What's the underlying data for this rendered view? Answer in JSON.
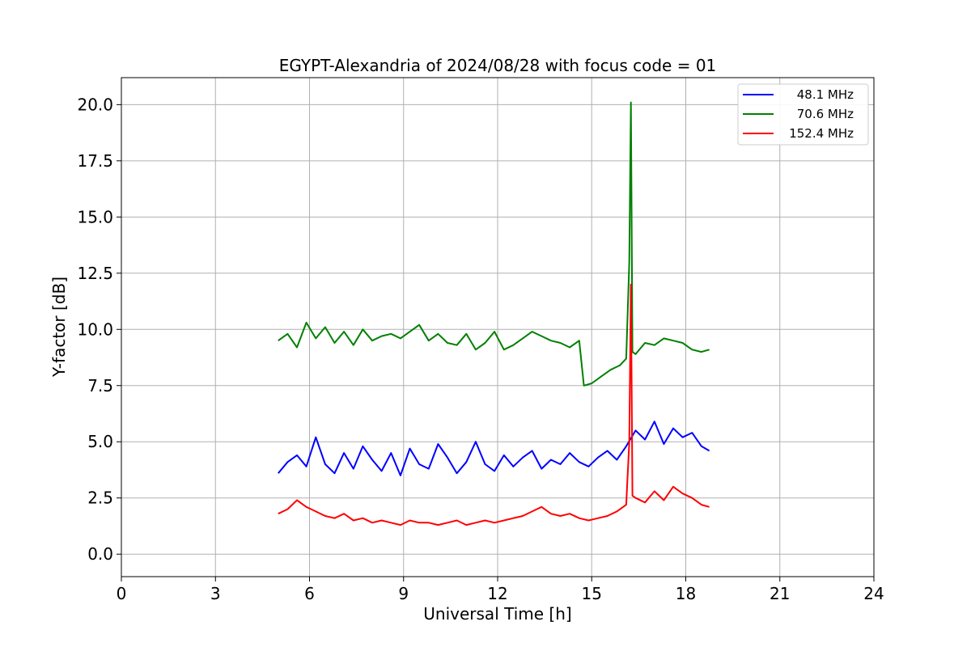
{
  "chart_data": {
    "type": "line",
    "title": "EGYPT-Alexandria of 2024/08/28 with focus code = 01",
    "xlabel": "Universal Time [h]",
    "ylabel": "Y-factor [dB]",
    "xlim": [
      0,
      24
    ],
    "ylim": [
      -1.0,
      21.2
    ],
    "xticks": [
      0,
      3,
      6,
      9,
      12,
      15,
      18,
      21,
      24
    ],
    "xtick_labels": [
      "0",
      "3",
      "6",
      "9",
      "12",
      "15",
      "18",
      "21",
      "24"
    ],
    "yticks": [
      0.0,
      2.5,
      5.0,
      7.5,
      10.0,
      12.5,
      15.0,
      17.5,
      20.0
    ],
    "ytick_labels": [
      "0.0",
      "2.5",
      "5.0",
      "7.5",
      "10.0",
      "12.5",
      "15.0",
      "17.5",
      "20.0"
    ],
    "grid": true,
    "legend_position": "top-right",
    "series": [
      {
        "name": "48.1 MHz",
        "color": "#0000ff",
        "x": [
          5.0,
          5.3,
          5.6,
          5.9,
          6.2,
          6.5,
          6.8,
          7.1,
          7.4,
          7.7,
          8.0,
          8.3,
          8.6,
          8.9,
          9.2,
          9.5,
          9.8,
          10.1,
          10.4,
          10.7,
          11.0,
          11.3,
          11.6,
          11.9,
          12.2,
          12.5,
          12.8,
          13.1,
          13.4,
          13.7,
          14.0,
          14.3,
          14.6,
          14.9,
          15.2,
          15.5,
          15.8,
          16.1,
          16.4,
          16.7,
          17.0,
          17.3,
          17.6,
          17.9,
          18.2,
          18.5,
          18.75
        ],
        "values": [
          3.6,
          4.1,
          4.4,
          3.9,
          5.2,
          4.0,
          3.6,
          4.5,
          3.8,
          4.8,
          4.2,
          3.7,
          4.5,
          3.5,
          4.7,
          4.0,
          3.8,
          4.9,
          4.3,
          3.6,
          4.1,
          5.0,
          4.0,
          3.7,
          4.4,
          3.9,
          4.3,
          4.6,
          3.8,
          4.2,
          4.0,
          4.5,
          4.1,
          3.9,
          4.3,
          4.6,
          4.2,
          4.8,
          5.5,
          5.1,
          5.9,
          4.9,
          5.6,
          5.2,
          5.4,
          4.8,
          4.6
        ]
      },
      {
        "name": "70.6 MHz",
        "color": "#008000",
        "x": [
          5.0,
          5.3,
          5.6,
          5.9,
          6.2,
          6.5,
          6.8,
          7.1,
          7.4,
          7.7,
          8.0,
          8.3,
          8.6,
          8.9,
          9.2,
          9.5,
          9.8,
          10.1,
          10.4,
          10.7,
          11.0,
          11.3,
          11.6,
          11.9,
          12.2,
          12.5,
          12.8,
          13.1,
          13.4,
          13.7,
          14.0,
          14.3,
          14.6,
          14.75,
          15.0,
          15.3,
          15.6,
          15.9,
          16.1,
          16.2,
          16.25,
          16.3,
          16.4,
          16.7,
          17.0,
          17.3,
          17.6,
          17.9,
          18.2,
          18.5,
          18.75
        ],
        "values": [
          9.5,
          9.8,
          9.2,
          10.3,
          9.6,
          10.1,
          9.4,
          9.9,
          9.3,
          10.0,
          9.5,
          9.7,
          9.8,
          9.6,
          9.9,
          10.2,
          9.5,
          9.8,
          9.4,
          9.3,
          9.8,
          9.1,
          9.4,
          9.9,
          9.1,
          9.3,
          9.6,
          9.9,
          9.7,
          9.5,
          9.4,
          9.2,
          9.5,
          7.5,
          7.6,
          7.9,
          8.2,
          8.4,
          8.7,
          13.0,
          20.1,
          9.0,
          8.9,
          9.4,
          9.3,
          9.6,
          9.5,
          9.4,
          9.1,
          9.0,
          9.1
        ]
      },
      {
        "name": "152.4 MHz",
        "color": "#ff0000",
        "x": [
          5.0,
          5.3,
          5.6,
          5.9,
          6.2,
          6.5,
          6.8,
          7.1,
          7.4,
          7.7,
          8.0,
          8.3,
          8.6,
          8.9,
          9.2,
          9.5,
          9.8,
          10.1,
          10.4,
          10.7,
          11.0,
          11.3,
          11.6,
          11.9,
          12.2,
          12.5,
          12.8,
          13.1,
          13.4,
          13.7,
          14.0,
          14.3,
          14.6,
          14.9,
          15.2,
          15.5,
          15.8,
          16.1,
          16.2,
          16.25,
          16.3,
          16.4,
          16.7,
          17.0,
          17.3,
          17.6,
          17.9,
          18.2,
          18.5,
          18.75
        ],
        "values": [
          1.8,
          2.0,
          2.4,
          2.1,
          1.9,
          1.7,
          1.6,
          1.8,
          1.5,
          1.6,
          1.4,
          1.5,
          1.4,
          1.3,
          1.5,
          1.4,
          1.4,
          1.3,
          1.4,
          1.5,
          1.3,
          1.4,
          1.5,
          1.4,
          1.5,
          1.6,
          1.7,
          1.9,
          2.1,
          1.8,
          1.7,
          1.8,
          1.6,
          1.5,
          1.6,
          1.7,
          1.9,
          2.2,
          5.0,
          12.0,
          2.6,
          2.5,
          2.3,
          2.8,
          2.4,
          3.0,
          2.7,
          2.5,
          2.2,
          2.1
        ]
      }
    ]
  }
}
